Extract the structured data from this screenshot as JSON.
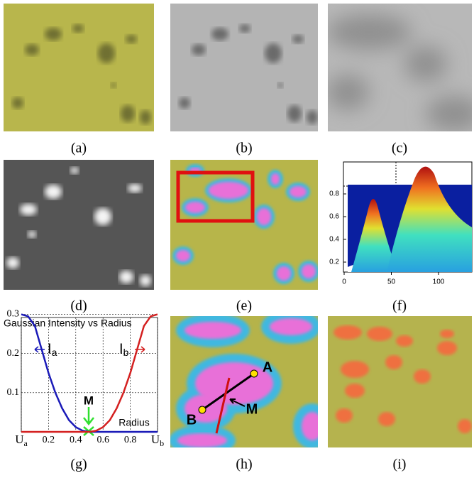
{
  "labels": [
    "(a)",
    "(b)",
    "(c)",
    "(d)",
    "(e)",
    "(f)",
    "(g)",
    "(h)",
    "(i)"
  ],
  "plot_f": {
    "xticks": [
      0,
      50,
      100
    ],
    "yticks": [
      0.2,
      0.4,
      0.6,
      0.8
    ]
  },
  "plot_g": {
    "title": "Gaussian Intensity vs Radius",
    "x_label": "Radius",
    "annotation": "M",
    "xlim": [
      0,
      1
    ],
    "ylim": [
      0,
      0.31
    ],
    "xticks": [
      {
        "value": 0,
        "label": "Ua"
      },
      0.2,
      0.4,
      0.6,
      0.8,
      {
        "value": 1,
        "label": "Ub"
      }
    ],
    "yticks": [
      0.1,
      0.2,
      0.3
    ],
    "x": [
      0,
      0.05,
      0.1,
      0.15,
      0.2,
      0.25,
      0.3,
      0.35,
      0.4,
      0.45,
      0.5,
      0.55,
      0.6,
      0.65,
      0.7,
      0.75,
      0.8,
      0.85,
      0.9,
      0.95,
      1
    ],
    "series": [
      {
        "name": "Ia",
        "color": "#1a1ab8",
        "values": [
          0.3,
          0.295,
          0.27,
          0.21,
          0.15,
          0.1,
          0.06,
          0.03,
          0.012,
          0.003,
          0,
          0,
          0,
          0,
          0,
          0,
          0,
          0,
          0,
          0,
          0
        ]
      },
      {
        "name": "Ib",
        "color": "#d42020",
        "values": [
          0,
          0,
          0,
          0,
          0,
          0,
          0,
          0,
          0,
          0,
          0,
          0.003,
          0.012,
          0.03,
          0.06,
          0.1,
          0.15,
          0.21,
          0.27,
          0.295,
          0.3
        ]
      }
    ]
  },
  "panel_h": {
    "points": [
      "A",
      "B"
    ],
    "annotation": "M"
  }
}
